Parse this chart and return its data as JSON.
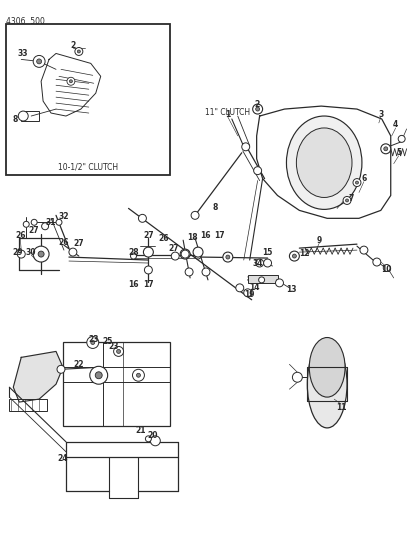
{
  "title": "4306  500",
  "background": "#ffffff",
  "ink": "#2a2a2a",
  "fig_w": 4.1,
  "fig_h": 5.33,
  "dpi": 100,
  "inset_caption": "10-1/2\" CLUTCH",
  "main_caption": "11\" CLUTCH"
}
